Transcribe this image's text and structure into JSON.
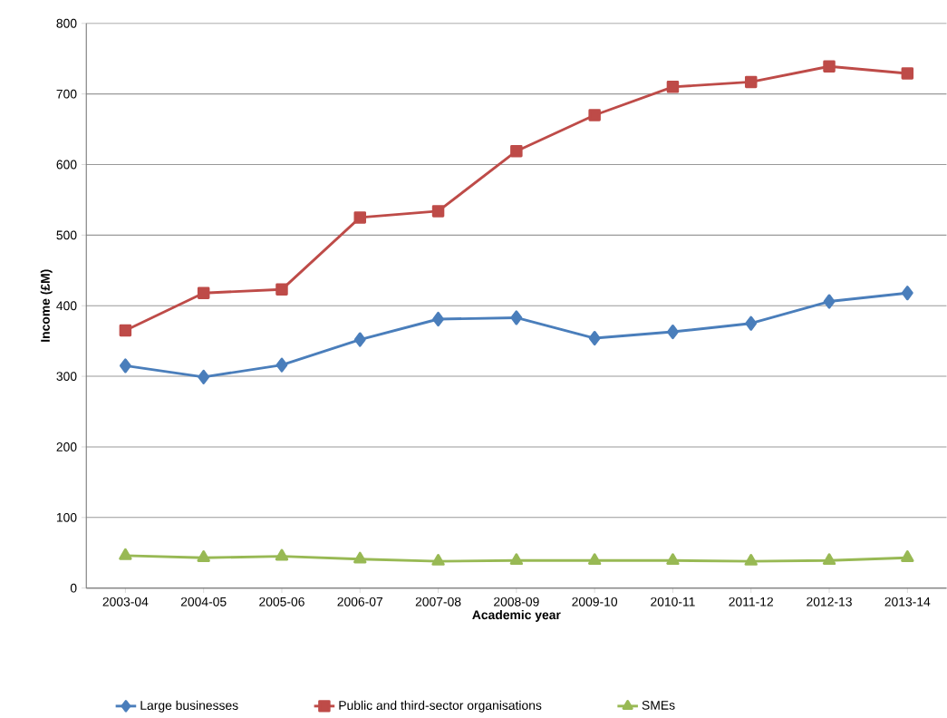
{
  "chart_data": {
    "type": "line",
    "xlabel": "Academic year",
    "ylabel": "Income (£M)",
    "categories": [
      "2003-04",
      "2004-05",
      "2005-06",
      "2006-07",
      "2007-08",
      "2008-09",
      "2009-10",
      "2010-11",
      "2011-12",
      "2012-13",
      "2013-14"
    ],
    "series": [
      {
        "name": "Large businesses",
        "color": "#4a7ebb",
        "marker": "diamond",
        "values": [
          315,
          299,
          316,
          352,
          381,
          383,
          354,
          363,
          375,
          406,
          418
        ]
      },
      {
        "name": "Public and third-sector organisations",
        "color": "#be4b48",
        "marker": "square",
        "values": [
          365,
          418,
          423,
          525,
          534,
          619,
          670,
          710,
          717,
          739,
          729
        ]
      },
      {
        "name": "SMEs",
        "color": "#98b954",
        "marker": "triangle",
        "values": [
          46,
          43,
          45,
          41,
          38,
          39,
          39,
          39,
          38,
          39,
          43
        ]
      }
    ],
    "ylim": [
      0,
      800
    ],
    "yticks": [
      0,
      100,
      200,
      300,
      400,
      500,
      600,
      700,
      800
    ],
    "grid": "y",
    "legend": "bottom"
  }
}
